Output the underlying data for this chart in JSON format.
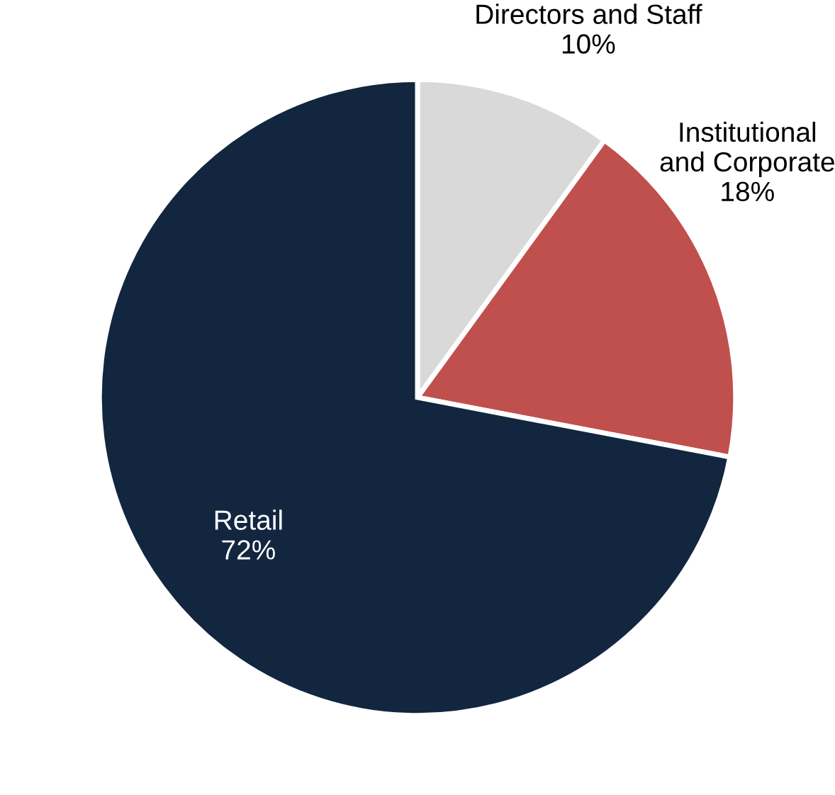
{
  "chart_data": {
    "type": "pie",
    "categories": [
      "Directors and Staff",
      "Institutional\nand Corporate",
      "Retail"
    ],
    "values": [
      10,
      18,
      72
    ],
    "value_labels": [
      "10%",
      "18%",
      "72%"
    ],
    "colors": [
      "#d9d9d9",
      "#c0504d",
      "#12263f"
    ]
  }
}
